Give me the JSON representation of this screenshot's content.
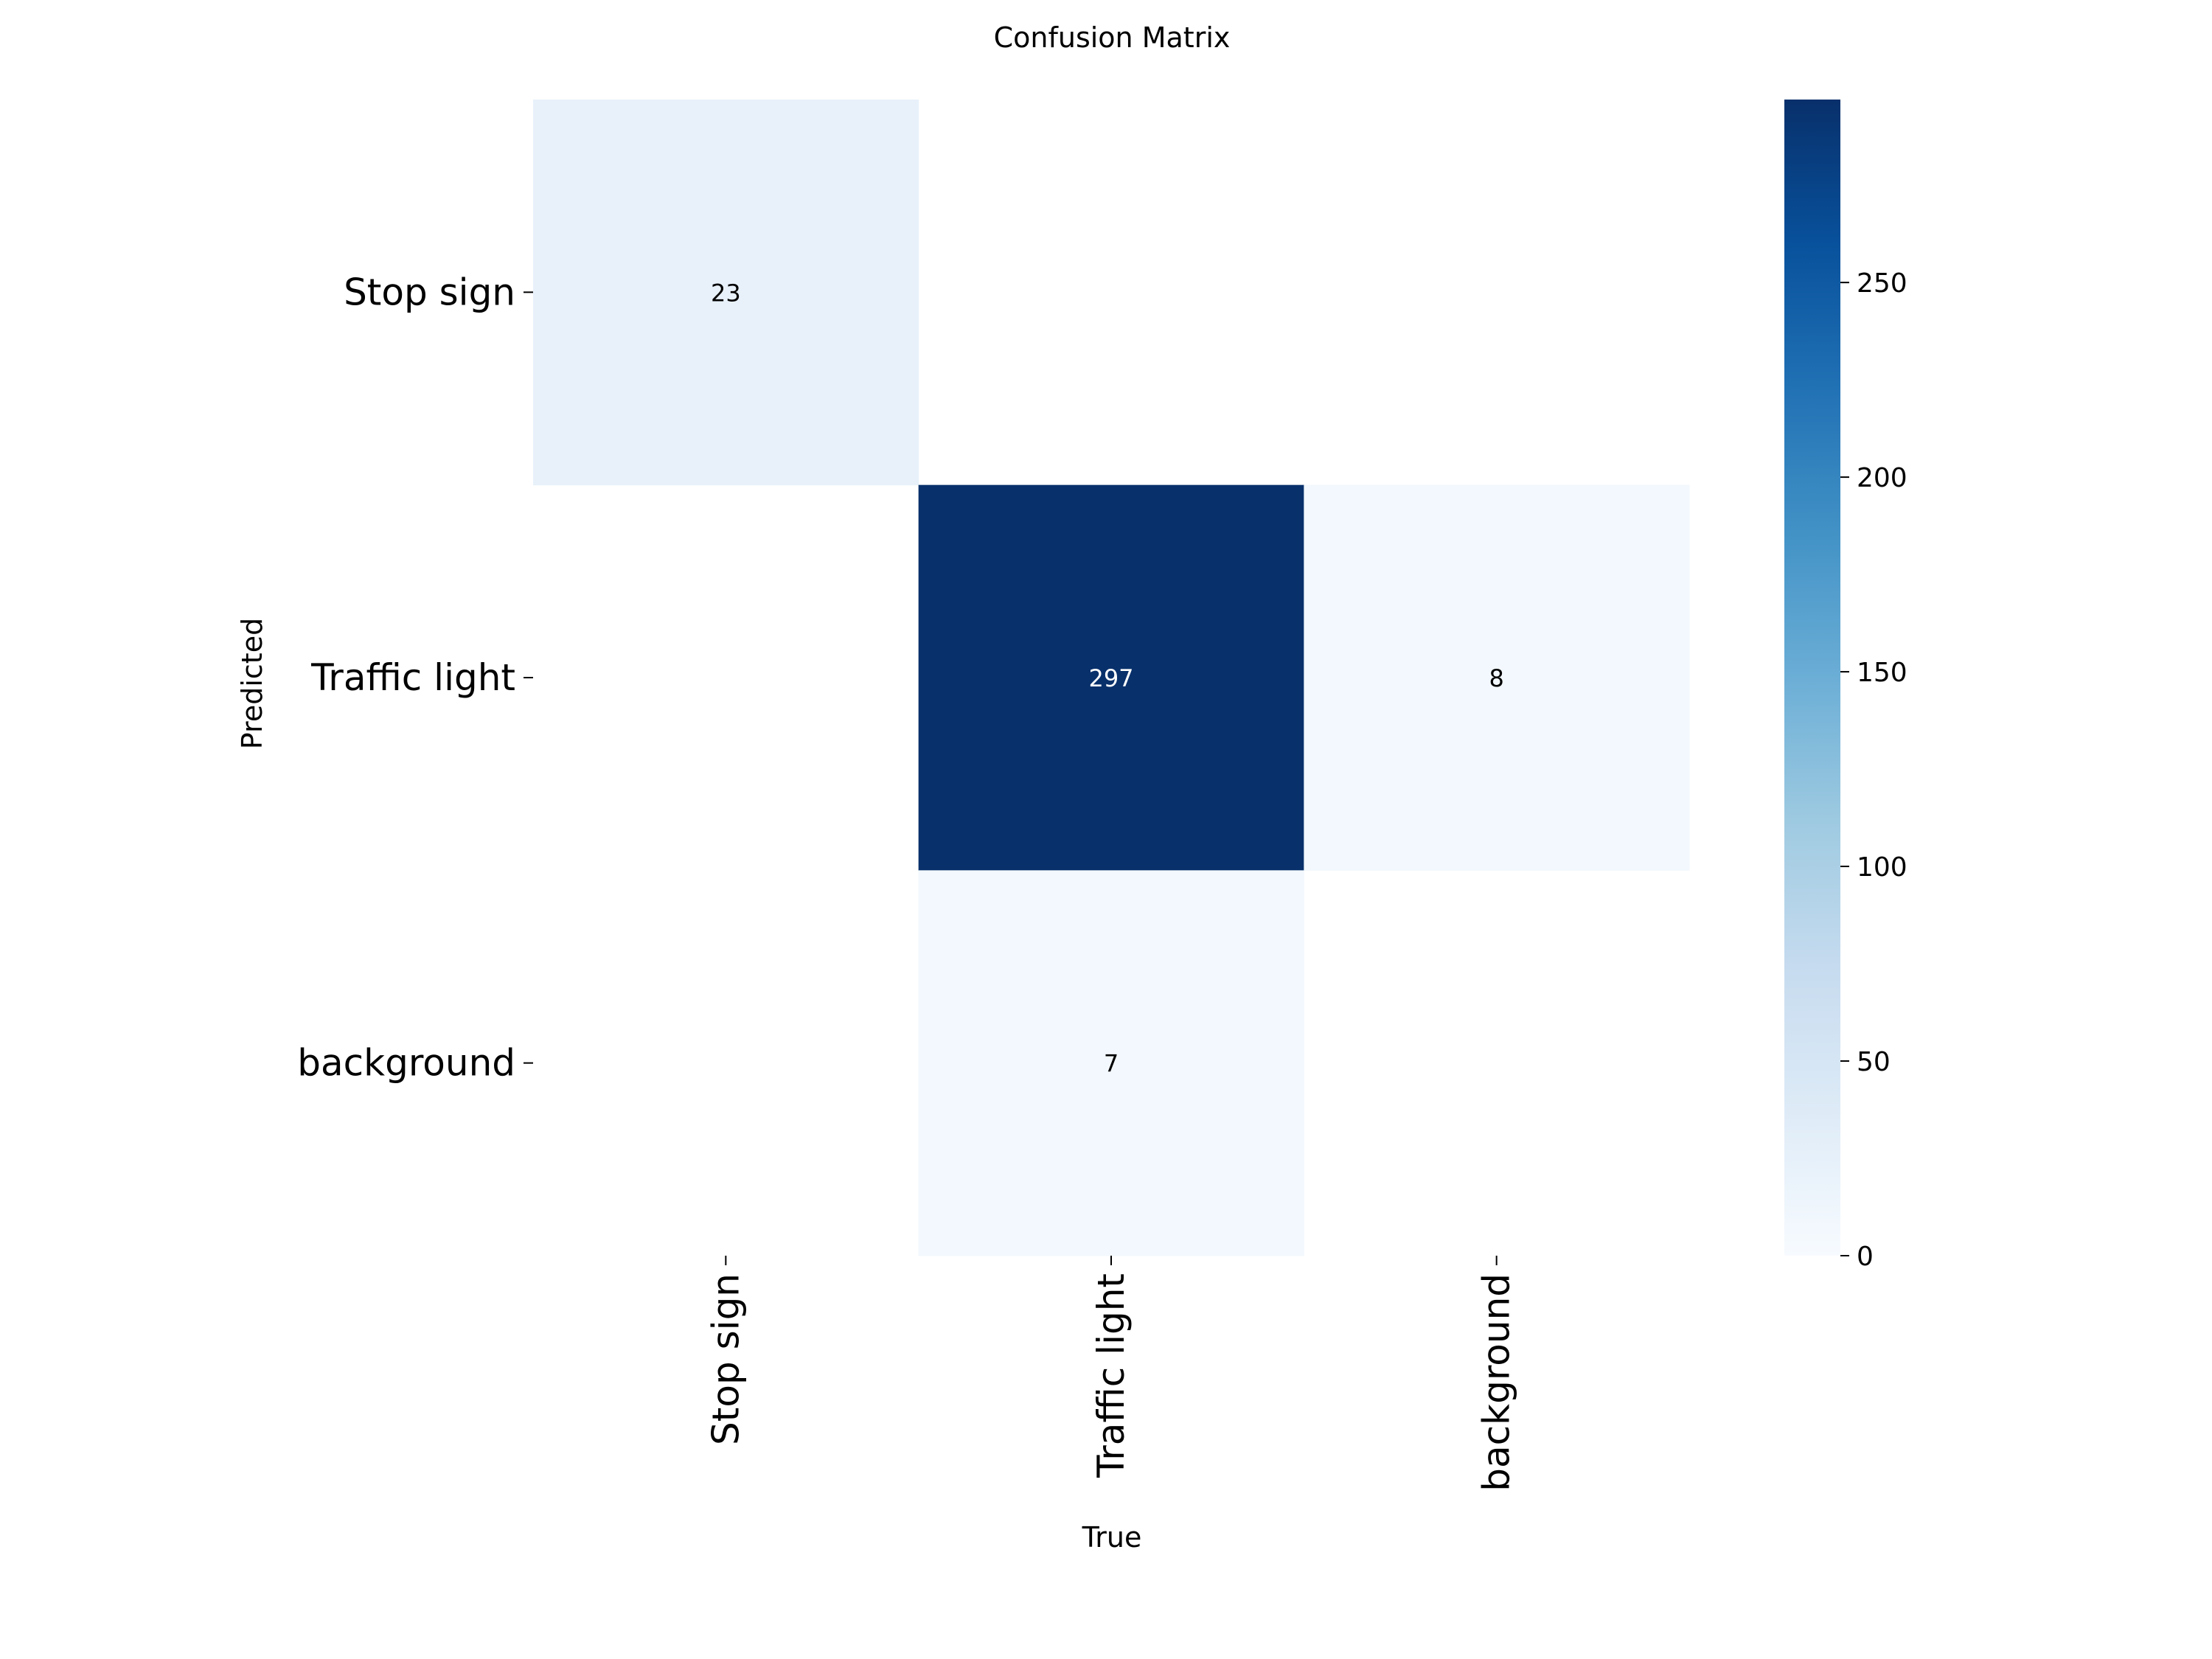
{
  "chart_data": {
    "type": "heatmap",
    "title": "Confusion Matrix",
    "xlabel": "True",
    "ylabel": "Predicted",
    "x_categories": [
      "Stop sign",
      "Traffic light",
      "background"
    ],
    "y_categories": [
      "Stop sign",
      "Traffic light",
      "background"
    ],
    "values": [
      [
        23,
        0,
        0
      ],
      [
        0,
        297,
        8
      ],
      [
        0,
        7,
        0
      ]
    ],
    "cell_labels": [
      [
        "23",
        "",
        ""
      ],
      [
        "",
        "297",
        "8"
      ],
      [
        "",
        "7",
        ""
      ]
    ],
    "hide_zero_cells": true,
    "colormap": "Blues",
    "color_range": [
      0,
      297
    ],
    "colorbar_ticks": [
      0,
      50,
      100,
      150,
      200,
      250
    ],
    "colorbar_tick_labels": [
      "0",
      "50",
      "100",
      "150",
      "200",
      "250"
    ],
    "colors": {
      "min": "#f7fbff",
      "max": "#08306b",
      "text_dark": "#000000",
      "text_light": "#ffffff"
    }
  }
}
